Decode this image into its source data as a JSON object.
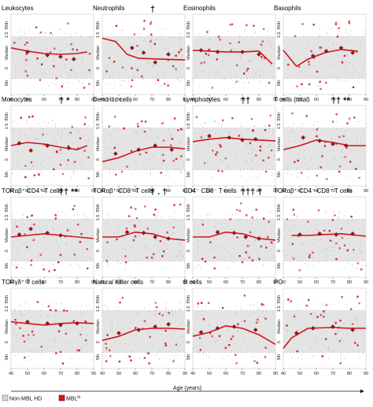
{
  "figure": {
    "x_axis_label": "Age (years)",
    "legend": [
      {
        "label": "Non-MBL HD",
        "color": "#c8c8c8",
        "swatch": "grey-square"
      },
      {
        "label": "MBL",
        "superscript": "lo",
        "color": "#d0161b",
        "swatch": "red-square"
      }
    ],
    "colors": {
      "band": "#e4e4e4",
      "fit_line": "#d0161b",
      "hd_points": "#b9b9b9",
      "mbl_points": "#c8121a",
      "median_markers": "#a3141a"
    }
  },
  "chart_data": [
    {
      "type": "scatter",
      "title": "Leukocytes",
      "annotation": "",
      "band_range": [
        40,
        90
      ],
      "xlim": [
        40,
        90
      ],
      "xticks": [
        40,
        50,
        60,
        70,
        80,
        90
      ],
      "y_tick_labels": [
        "95th",
        "1.5",
        "Median",
        ".5",
        "5th"
      ],
      "fit_line": [
        [
          40,
          0.42
        ],
        [
          50,
          0.46
        ],
        [
          60,
          0.49
        ],
        [
          70,
          0.5
        ],
        [
          80,
          0.49
        ],
        [
          86,
          0.47
        ]
      ],
      "medians": [
        [
          50,
          0.47
        ],
        [
          62,
          0.51
        ],
        [
          70,
          0.53
        ],
        [
          78,
          0.56
        ]
      ]
    },
    {
      "type": "scatter",
      "title": "Neutrophils",
      "annotation": "†",
      "band_range": [
        40,
        90
      ],
      "xlim": [
        40,
        90
      ],
      "xticks": [
        40,
        50,
        60,
        70,
        80,
        90
      ],
      "y_tick_labels": [
        "95th",
        "1.5",
        "Median",
        ".5",
        "5th"
      ],
      "fit_line": [
        [
          40,
          0.3
        ],
        [
          48,
          0.34
        ],
        [
          55,
          0.5
        ],
        [
          62,
          0.55
        ],
        [
          75,
          0.56
        ],
        [
          90,
          0.57
        ]
      ],
      "medians": [
        [
          58,
          0.42
        ],
        [
          65,
          0.48
        ],
        [
          72,
          0.6
        ],
        [
          80,
          0.5
        ]
      ]
    },
    {
      "type": "scatter",
      "title": "Eosinophils",
      "annotation": "",
      "band_range": [
        40,
        90
      ],
      "xlim": [
        40,
        90
      ],
      "xticks": [
        40,
        50,
        60,
        70,
        80,
        90
      ],
      "y_tick_labels": [
        "95th",
        "1.5",
        "Median",
        ".5",
        "5th"
      ],
      "fit_line": [
        [
          40,
          0.45
        ],
        [
          50,
          0.46
        ],
        [
          60,
          0.47
        ],
        [
          70,
          0.47
        ],
        [
          80,
          0.46
        ],
        [
          88,
          0.62
        ]
      ],
      "medians": [
        [
          45,
          0.45
        ],
        [
          55,
          0.47
        ],
        [
          70,
          0.47
        ],
        [
          80,
          0.5
        ]
      ]
    },
    {
      "type": "scatter",
      "title": "Basophils",
      "annotation": "",
      "band_range": [
        40,
        90
      ],
      "xlim": [
        40,
        90
      ],
      "xticks": [
        40,
        50,
        60,
        70,
        80,
        90
      ],
      "y_tick_labels": [
        "95th",
        "1.5",
        "Median",
        ".5",
        "5th"
      ],
      "fit_line": [
        [
          40,
          0.45
        ],
        [
          48,
          0.65
        ],
        [
          55,
          0.56
        ],
        [
          65,
          0.48
        ],
        [
          75,
          0.44
        ],
        [
          85,
          0.46
        ]
      ],
      "medians": [
        [
          58,
          0.52
        ],
        [
          66,
          0.46
        ],
        [
          75,
          0.42
        ],
        [
          82,
          0.48
        ]
      ]
    },
    {
      "type": "scatter",
      "title": "Monocytes",
      "annotation": "†   *",
      "band_range": [
        40,
        90
      ],
      "xlim": [
        40,
        90
      ],
      "xticks": [
        40,
        50,
        60,
        70,
        80,
        90
      ],
      "y_tick_labels": [
        "95th",
        "1.5",
        "Median",
        ".5",
        "5th"
      ],
      "fit_line": [
        [
          40,
          0.5
        ],
        [
          50,
          0.46
        ],
        [
          60,
          0.48
        ],
        [
          70,
          0.52
        ],
        [
          80,
          0.55
        ],
        [
          86,
          0.5
        ]
      ],
      "medians": [
        [
          45,
          0.47
        ],
        [
          52,
          0.56
        ],
        [
          62,
          0.5
        ],
        [
          75,
          0.53
        ]
      ]
    },
    {
      "type": "scatter",
      "title": "Dendritic cells",
      "annotation": "",
      "band_range": [
        40,
        90
      ],
      "xlim": [
        40,
        90
      ],
      "xticks": [
        40,
        50,
        60,
        70,
        80,
        90
      ],
      "y_tick_labels": [
        "95th",
        "1.5",
        "Median",
        ".5",
        "5th"
      ],
      "fit_line": [
        [
          40,
          0.7
        ],
        [
          50,
          0.65
        ],
        [
          60,
          0.57
        ],
        [
          70,
          0.52
        ],
        [
          80,
          0.52
        ],
        [
          90,
          0.54
        ]
      ],
      "medians": [
        [
          48,
          0.6
        ],
        [
          62,
          0.55
        ],
        [
          72,
          0.5
        ],
        [
          82,
          0.55
        ]
      ]
    },
    {
      "type": "scatter",
      "title": "Lymphocytes",
      "annotation": "††",
      "band_range": [
        40,
        90
      ],
      "xlim": [
        40,
        90
      ],
      "xticks": [
        40,
        50,
        60,
        70,
        80,
        90
      ],
      "y_tick_labels": [
        "95th",
        "1.5",
        "Median",
        ".5",
        "5th"
      ],
      "fit_line": [
        [
          40,
          0.45
        ],
        [
          50,
          0.42
        ],
        [
          60,
          0.4
        ],
        [
          70,
          0.42
        ],
        [
          80,
          0.43
        ],
        [
          90,
          0.44
        ]
      ],
      "medians": [
        [
          50,
          0.38
        ],
        [
          62,
          0.4
        ],
        [
          70,
          0.43
        ],
        [
          78,
          0.42
        ]
      ]
    },
    {
      "type": "scatter",
      "title": "T cells (total)",
      "annotation": "††  **",
      "band_range": [
        40,
        90
      ],
      "xlim": [
        40,
        90
      ],
      "xticks": [
        40,
        50,
        60,
        70,
        80,
        90
      ],
      "y_tick_labels": [
        "95th",
        "1.5",
        "Median",
        ".5",
        "5th"
      ],
      "fit_line": [
        [
          40,
          0.55
        ],
        [
          50,
          0.5
        ],
        [
          60,
          0.43
        ],
        [
          70,
          0.46
        ],
        [
          80,
          0.5
        ],
        [
          90,
          0.5
        ]
      ],
      "medians": [
        [
          52,
          0.4
        ],
        [
          62,
          0.44
        ],
        [
          70,
          0.48
        ],
        [
          78,
          0.5
        ]
      ]
    },
    {
      "type": "scatter",
      "title": "TCRαβ⁺ CD4⁺ T cells",
      "annotation": "††  **",
      "band_range": [
        40,
        90
      ],
      "xlim": [
        40,
        90
      ],
      "xticks": [
        40,
        50,
        60,
        70,
        80,
        90
      ],
      "y_tick_labels": [
        "95th",
        "1.5",
        "Median",
        ".5",
        "5th"
      ],
      "fit_line": [
        [
          40,
          0.5
        ],
        [
          50,
          0.48
        ],
        [
          60,
          0.46
        ],
        [
          70,
          0.48
        ],
        [
          80,
          0.5
        ],
        [
          90,
          0.52
        ]
      ],
      "medians": [
        [
          45,
          0.47
        ],
        [
          52,
          0.4
        ],
        [
          62,
          0.45
        ],
        [
          70,
          0.48
        ]
      ]
    },
    {
      "type": "scatter",
      "title": "TCRαβ⁺ CD8⁺ T cells",
      "annotation": "†  .  †",
      "band_range": [
        40,
        90
      ],
      "xlim": [
        40,
        90
      ],
      "xticks": [
        40,
        50,
        60,
        70,
        80,
        90
      ],
      "y_tick_labels": [
        "95th",
        "1.5",
        "Median",
        ".5",
        "5th"
      ],
      "fit_line": [
        [
          40,
          0.5
        ],
        [
          50,
          0.5
        ],
        [
          60,
          0.44
        ],
        [
          70,
          0.46
        ],
        [
          80,
          0.52
        ],
        [
          90,
          0.54
        ]
      ],
      "medians": [
        [
          55,
          0.44
        ],
        [
          65,
          0.45
        ],
        [
          72,
          0.5
        ],
        [
          80,
          0.52
        ]
      ]
    },
    {
      "type": "scatter",
      "title": "CD4⁻ CD8⁻ T cells",
      "annotation": "†††     †",
      "band_range": [
        40,
        90
      ],
      "xlim": [
        40,
        90
      ],
      "xticks": [
        40,
        50,
        60,
        70,
        80,
        90
      ],
      "y_tick_labels": [
        "95th",
        "1.5",
        "Median",
        ".5",
        "5th"
      ],
      "fit_line": [
        [
          40,
          0.5
        ],
        [
          50,
          0.5
        ],
        [
          60,
          0.44
        ],
        [
          70,
          0.46
        ],
        [
          80,
          0.52
        ],
        [
          90,
          0.54
        ]
      ],
      "medians": [
        [
          55,
          0.44
        ],
        [
          65,
          0.45
        ],
        [
          72,
          0.5
        ],
        [
          80,
          0.52
        ]
      ]
    },
    {
      "type": "scatter",
      "title": "TCRαβ⁺ CD4⁻ CD8⁻ T cells",
      "annotation": "",
      "band_range": [
        40,
        90
      ],
      "xlim": [
        40,
        90
      ],
      "xticks": [
        40,
        50,
        60,
        70,
        80,
        90
      ],
      "y_tick_labels": [
        "95th",
        "1.5",
        "Median",
        ".5",
        "5th"
      ],
      "fit_line": [
        [
          45,
          0.48
        ],
        [
          55,
          0.48
        ],
        [
          65,
          0.47
        ],
        [
          75,
          0.46
        ],
        [
          85,
          0.48
        ],
        [
          90,
          0.49
        ]
      ],
      "medians": [
        [
          50,
          0.47
        ],
        [
          62,
          0.46
        ],
        [
          72,
          0.47
        ],
        [
          82,
          0.46
        ]
      ]
    },
    {
      "type": "scatter",
      "title": "TCRγδ⁺ T cells",
      "annotation": "",
      "band_range": [
        40,
        90
      ],
      "xlim": [
        40,
        90
      ],
      "xticks": [
        40,
        50,
        60,
        70,
        80,
        90
      ],
      "y_tick_labels": [
        "95th",
        "1.5",
        "Median",
        ".5",
        "5th"
      ],
      "fit_line": [
        [
          40,
          0.42
        ],
        [
          50,
          0.44
        ],
        [
          60,
          0.46
        ],
        [
          70,
          0.44
        ],
        [
          80,
          0.43
        ],
        [
          90,
          0.44
        ]
      ],
      "medians": [
        [
          50,
          0.42
        ],
        [
          62,
          0.44
        ],
        [
          70,
          0.46
        ],
        [
          80,
          0.44
        ]
      ]
    },
    {
      "type": "scatter",
      "title": "Natural Killer cells",
      "annotation": "",
      "band_range": [
        40,
        90
      ],
      "xlim": [
        40,
        90
      ],
      "xticks": [
        40,
        50,
        60,
        70,
        80,
        90
      ],
      "y_tick_labels": [
        "95th",
        "1.5",
        "Median",
        ".5",
        "5th"
      ],
      "fit_line": [
        [
          40,
          0.65
        ],
        [
          50,
          0.6
        ],
        [
          60,
          0.52
        ],
        [
          70,
          0.5
        ],
        [
          80,
          0.5
        ],
        [
          90,
          0.51
        ]
      ],
      "medians": [
        [
          50,
          0.56
        ],
        [
          62,
          0.52
        ],
        [
          72,
          0.48
        ],
        [
          80,
          0.45
        ]
      ]
    },
    {
      "type": "scatter",
      "title": "B cells",
      "annotation": "",
      "band_range": [
        40,
        90
      ],
      "xlim": [
        40,
        90
      ],
      "xticks": [
        40,
        50,
        60,
        70,
        80,
        90
      ],
      "y_tick_labels": [
        "95th",
        "1.5",
        "Median",
        ".5",
        "5th"
      ],
      "fit_line": [
        [
          40,
          0.6
        ],
        [
          50,
          0.55
        ],
        [
          60,
          0.47
        ],
        [
          70,
          0.5
        ],
        [
          80,
          0.58
        ],
        [
          90,
          0.7
        ]
      ],
      "medians": [
        [
          45,
          0.55
        ],
        [
          55,
          0.5
        ],
        [
          65,
          0.48
        ],
        [
          78,
          0.52
        ]
      ]
    },
    {
      "type": "scatter",
      "title": "PC",
      "annotation": "",
      "band_range": [
        40,
        90
      ],
      "xlim": [
        40,
        90
      ],
      "xticks": [
        40,
        50,
        60,
        70,
        80,
        90
      ],
      "y_tick_labels": [
        "95th",
        "1.5",
        "Median",
        ".5",
        "5th"
      ],
      "fit_line": [
        [
          40,
          0.75
        ],
        [
          45,
          0.62
        ],
        [
          55,
          0.5
        ],
        [
          70,
          0.49
        ],
        [
          80,
          0.5
        ],
        [
          90,
          0.5
        ]
      ],
      "medians": [
        [
          48,
          0.56
        ],
        [
          58,
          0.5
        ],
        [
          70,
          0.48
        ],
        [
          82,
          0.52
        ]
      ]
    }
  ]
}
